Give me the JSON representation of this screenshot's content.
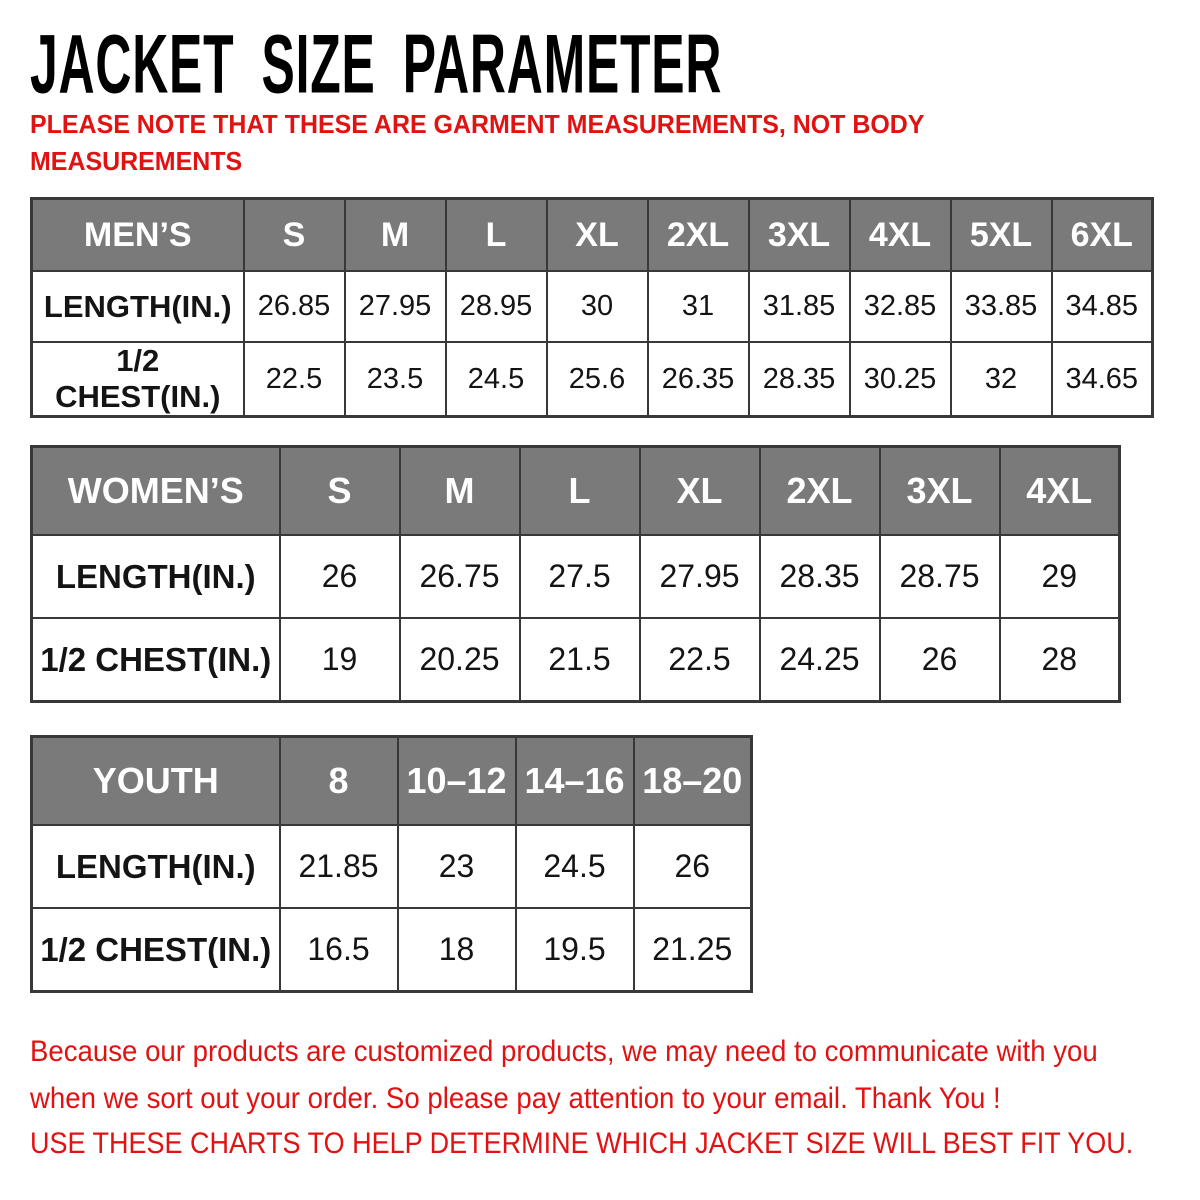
{
  "title": "JACKET SIZE PARAMETER",
  "note": {
    "lines": [
      "PLEASE NOTE THAT THESE ARE GARMENT MEASUREMENTS, NOT BODY",
      "MEASUREMENTS"
    ]
  },
  "colors": {
    "accent_red": "#e01212",
    "header_gray": "#7a7a7a",
    "border_dark": "#383838"
  },
  "tables": [
    {
      "name": "MEN’S",
      "sizes": [
        "S",
        "M",
        "L",
        "XL",
        "2XL",
        "3XL",
        "4XL",
        "5XL",
        "6XL"
      ],
      "rows": [
        {
          "label": "LENGTH(IN.)",
          "values": [
            "26.85",
            "27.95",
            "28.95",
            "30",
            "31",
            "31.85",
            "32.85",
            "33.85",
            "34.85"
          ]
        },
        {
          "label": "1/2 CHEST(IN.)",
          "values": [
            "22.5",
            "23.5",
            "24.5",
            "25.6",
            "26.35",
            "28.35",
            "30.25",
            "32",
            "34.65"
          ]
        }
      ]
    },
    {
      "name": "WOMEN’S",
      "sizes": [
        "S",
        "M",
        "L",
        "XL",
        "2XL",
        "3XL",
        "4XL"
      ],
      "rows": [
        {
          "label": "LENGTH(IN.)",
          "values": [
            "26",
            "26.75",
            "27.5",
            "27.95",
            "28.35",
            "28.75",
            "29"
          ]
        },
        {
          "label": "1/2 CHEST(IN.)",
          "values": [
            "19",
            "20.25",
            "21.5",
            "22.5",
            "24.25",
            "26",
            "28"
          ]
        }
      ]
    },
    {
      "name": "YOUTH",
      "sizes": [
        "8",
        "10–12",
        "14–16",
        "18–20"
      ],
      "rows": [
        {
          "label": "LENGTH(IN.)",
          "values": [
            "21.85",
            "23",
            "24.5",
            "26"
          ]
        },
        {
          "label": "1/2 CHEST(IN.)",
          "values": [
            "16.5",
            "18",
            "19.5",
            "21.25"
          ]
        }
      ]
    }
  ],
  "footer": {
    "lines": [
      "Because our products are customized products, we may need to communicate with you",
      "when we sort out your order. So please pay attention to your email. Thank You !"
    ],
    "advice": "USE THESE CHARTS TO HELP DETERMINE WHICH JACKET SIZE WILL BEST FIT YOU."
  }
}
